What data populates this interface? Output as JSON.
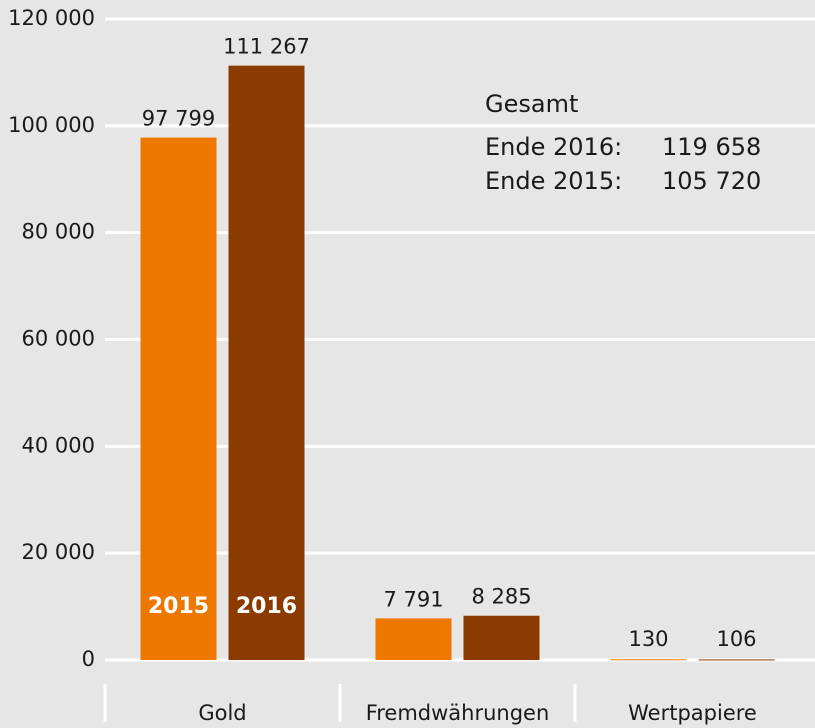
{
  "chart_data": {
    "type": "bar",
    "categories": [
      "Gold",
      "Fremdwährungen",
      "Wertpapiere"
    ],
    "series": [
      {
        "name": "2015",
        "color": "#ee7700",
        "values": [
          97799,
          7791,
          130
        ],
        "value_labels": [
          "97 799",
          "7 791",
          "130"
        ]
      },
      {
        "name": "2016",
        "color": "#8b3a00",
        "values": [
          111267,
          8285,
          106
        ],
        "value_labels": [
          "111 267",
          "8 285",
          "106"
        ]
      }
    ],
    "ylim": [
      0,
      120000
    ],
    "yticks": [
      0,
      {
        "value": 20000,
        "label": "20 000"
      },
      {
        "value": 40000,
        "label": "40 000"
      },
      {
        "value": 60000,
        "label": "60 000"
      },
      {
        "value": 80000,
        "label": "80 000"
      },
      {
        "value": 100000,
        "label": "100 000"
      },
      {
        "value": 120000,
        "label": "120 000"
      }
    ],
    "grid": true,
    "annotations": {
      "title": "Gesamt",
      "rows": [
        [
          "Ende 2016:",
          "119 658"
        ],
        [
          "Ende 2015:",
          "105 720"
        ]
      ]
    }
  }
}
